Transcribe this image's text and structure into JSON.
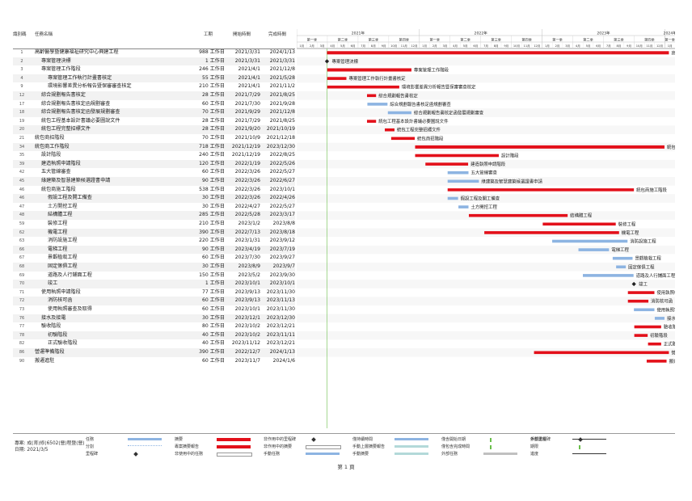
{
  "header": {
    "id": "識別碼",
    "name": "任務名稱",
    "duration": "工期",
    "start": "開始時間",
    "end": "完成時間"
  },
  "timeline": {
    "years": [
      "2021年",
      "2022年",
      "2023年",
      "2024年"
    ],
    "quarters": [
      "第一季",
      "第二季",
      "第三季",
      "第四季",
      "第一季",
      "第二季",
      "第三季",
      "第四季",
      "第一季",
      "第二季",
      "第三季",
      "第四季",
      "第一季",
      "第二季",
      "第三季",
      "第四季"
    ],
    "months": [
      "1月",
      "2月",
      "3月",
      "4月",
      "5月",
      "6月",
      "7月",
      "8月",
      "9月",
      "10月",
      "11月",
      "12月",
      "1月",
      "2月",
      "3月",
      "4月",
      "5月",
      "6月",
      "7月",
      "8月",
      "9月",
      "10月",
      "11月",
      "12月",
      "1月",
      "2月",
      "3月",
      "4月",
      "5月",
      "6月",
      "7月",
      "8月",
      "9月",
      "10月",
      "11月",
      "12月",
      "1月",
      "2月",
      "3月",
      "4月",
      "5月",
      "6月",
      "7月",
      "8月",
      "9月",
      "10月",
      "11月",
      "12月",
      "1月"
    ]
  },
  "tasks": [
    {
      "id": "1",
      "name": "高齡醫學暨健康福祉研究中心興建工程",
      "dur": "988 工作日",
      "start": "2021/3/31",
      "end": "2024/1/13",
      "indent": 0,
      "type": "summary",
      "label": "高齡醫學暨健康福祉研究中心興建工程",
      "s": 2021.247,
      "e": 2024.033
    },
    {
      "id": "2",
      "name": "專案管理決標",
      "dur": "1 工作日",
      "start": "2021/3/31",
      "end": "2021/3/31",
      "indent": 1,
      "type": "milestone",
      "label": "專案管理決標",
      "s": 2021.247,
      "e": 2021.247
    },
    {
      "id": "3",
      "name": "專案管理工作階段",
      "dur": "246 工作日",
      "start": "2021/4/1",
      "end": "2021/12/8",
      "indent": 1,
      "type": "summary",
      "label": "專案管理工作階段",
      "s": 2021.249,
      "e": 2021.935
    },
    {
      "id": "4",
      "name": "專案管理工作執行計畫書核定",
      "dur": "55 工作日",
      "start": "2021/4/1",
      "end": "2021/5/28",
      "indent": 2,
      "type": "critical",
      "label": "專案管理工作執行計畫書核定",
      "s": 2021.249,
      "e": 2021.405
    },
    {
      "id": "9",
      "name": "環境影響差異分析報告暨保審審查核定",
      "dur": "210 工作日",
      "start": "2021/4/1",
      "end": "2021/11/2",
      "indent": 2,
      "type": "critical",
      "label": "環境影響差異分析報告暨保審審查核定",
      "s": 2021.249,
      "e": 2021.836
    },
    {
      "id": "12",
      "name": "綜合規劃報告書核定",
      "dur": "28 工作日",
      "start": "2021/7/29",
      "end": "2021/8/25",
      "indent": 1,
      "type": "critical",
      "label": "綜合規劃報告書核定",
      "s": 2021.573,
      "e": 2021.647
    },
    {
      "id": "17",
      "name": "綜合規劃報告書核定函規劃審查",
      "dur": "60 工作日",
      "start": "2021/7/30",
      "end": "2021/9/28",
      "indent": 1,
      "type": "normal",
      "label": "綜合規劃報告書核定函規劃審查",
      "s": 2021.576,
      "e": 2021.74
    },
    {
      "id": "18",
      "name": "綜合規劃報告書核定函發展規劃審查",
      "dur": "70 工作日",
      "start": "2021/9/29",
      "end": "2021/12/8",
      "indent": 1,
      "type": "normal",
      "label": "綜合規劃報告書核定函發展規劃審查",
      "s": 2021.743,
      "e": 2021.935
    },
    {
      "id": "19",
      "name": "統包工程基本設計書議必要圖說文件",
      "dur": "28 工作日",
      "start": "2021/7/29",
      "end": "2021/8/25",
      "indent": 1,
      "type": "critical",
      "label": "統包工程基本設計書議必要圖說文件",
      "s": 2021.573,
      "e": 2021.647
    },
    {
      "id": "20",
      "name": "統包工程完整招標文件",
      "dur": "28 工作日",
      "start": "2021/9/20",
      "end": "2021/10/19",
      "indent": 1,
      "type": "critical",
      "label": "統包工程完整招標文件",
      "s": 2021.718,
      "e": 2021.797
    },
    {
      "id": "21",
      "name": "統包商招階段",
      "dur": "70 工作日",
      "start": "2021/10/9",
      "end": "2021/12/18",
      "indent": 0,
      "type": "critical",
      "label": "統包商招階段",
      "s": 2021.77,
      "e": 2021.962
    },
    {
      "id": "34",
      "name": "統包商工作階段",
      "dur": "718 工作日",
      "start": "2021/12/19",
      "end": "2023/12/30",
      "indent": 0,
      "type": "summary",
      "label": "統包商工作階段",
      "s": 2021.965,
      "e": 2023.997
    },
    {
      "id": "35",
      "name": "設計階段",
      "dur": "240 工作日",
      "start": "2021/12/19",
      "end": "2022/8/25",
      "indent": 1,
      "type": "critical",
      "label": "設計階段",
      "s": 2021.965,
      "e": 2022.647
    },
    {
      "id": "39",
      "name": "建造執照申請階段",
      "dur": "120 工作日",
      "start": "2022/1/19",
      "end": "2022/5/26",
      "indent": 1,
      "type": "critical",
      "label": "建造執照申請階段",
      "s": 2022.049,
      "e": 2022.397
    },
    {
      "id": "42",
      "name": "五大管線審查",
      "dur": "60 工作日",
      "start": "2022/3/26",
      "end": "2022/5/27",
      "indent": 1,
      "type": "normal",
      "label": "五大管線審查",
      "s": 2022.23,
      "e": 2022.4
    },
    {
      "id": "45",
      "name": "綠建築及智慧建築候選證書申請",
      "dur": "90 工作日",
      "start": "2022/3/26",
      "end": "2022/6/27",
      "indent": 1,
      "type": "normal",
      "label": "綠建築及智慧建築候選證書申請",
      "s": 2022.23,
      "e": 2022.485
    },
    {
      "id": "46",
      "name": "統包商施工階段",
      "dur": "538 工作日",
      "start": "2022/3/26",
      "end": "2023/10/1",
      "indent": 1,
      "type": "critical",
      "label": "統包商施工階段",
      "s": 2022.23,
      "e": 2023.748
    },
    {
      "id": "46",
      "name": "假設工程及開工備查",
      "dur": "30 工作日",
      "start": "2022/3/26",
      "end": "2022/4/26",
      "indent": 2,
      "type": "normal",
      "label": "假設工程及開工備查",
      "s": 2022.23,
      "e": 2022.315
    },
    {
      "id": "47",
      "name": "土方開挖工程",
      "dur": "30 工作日",
      "start": "2022/4/27",
      "end": "2022/5/27",
      "indent": 2,
      "type": "normal",
      "label": "土方開挖工程",
      "s": 2022.318,
      "e": 2022.4
    },
    {
      "id": "48",
      "name": "結構體工程",
      "dur": "285 工作日",
      "start": "2022/5/28",
      "end": "2023/3/17",
      "indent": 2,
      "type": "critical",
      "label": "結構體工程",
      "s": 2022.403,
      "e": 2023.208
    },
    {
      "id": "59",
      "name": "裝修工程",
      "dur": "210 工作日",
      "start": "2023/1/2",
      "end": "2023/8/8",
      "indent": 2,
      "type": "critical",
      "label": "裝修工程",
      "s": 2023.005,
      "e": 2023.6
    },
    {
      "id": "62",
      "name": "機電工程",
      "dur": "390 工作日",
      "start": "2022/7/13",
      "end": "2023/8/18",
      "indent": 2,
      "type": "critical",
      "label": "機電工程",
      "s": 2022.529,
      "e": 2023.627
    },
    {
      "id": "63",
      "name": "消防設施工程",
      "dur": "220 工作日",
      "start": "2023/1/31",
      "end": "2023/9/12",
      "indent": 2,
      "type": "normal",
      "label": "消防設施工程",
      "s": 2023.082,
      "e": 2023.696
    },
    {
      "id": "66",
      "name": "電梯工程",
      "dur": "90 工作日",
      "start": "2023/4/19",
      "end": "2023/7/19",
      "indent": 2,
      "type": "normal",
      "label": "電梯工程",
      "s": 2023.296,
      "e": 2023.545
    },
    {
      "id": "67",
      "name": "景觀植栽工程",
      "dur": "60 工作日",
      "start": "2023/7/30",
      "end": "2023/9/27",
      "indent": 2,
      "type": "normal",
      "label": "景觀植栽工程",
      "s": 2023.575,
      "e": 2023.737
    },
    {
      "id": "68",
      "name": "固定傢俱工程",
      "dur": "30 工作日",
      "start": "2023/8/9",
      "end": "2023/9/7",
      "indent": 2,
      "type": "normal",
      "label": "固定傢俱工程",
      "s": 2023.603,
      "e": 2023.682
    },
    {
      "id": "69",
      "name": "道路及人行鋪面工程",
      "dur": "150 工作日",
      "start": "2023/5/2",
      "end": "2023/9/30",
      "indent": 2,
      "type": "normal",
      "label": "道路及人行鋪面工程",
      "s": 2023.332,
      "e": 2023.745
    },
    {
      "id": "70",
      "name": "竣工",
      "dur": "1 工作日",
      "start": "2023/10/1",
      "end": "2023/10/1",
      "indent": 2,
      "type": "milestone",
      "label": "竣工",
      "s": 2023.748,
      "e": 2023.748
    },
    {
      "id": "71",
      "name": "使用執照申請階段",
      "dur": "77 工作日",
      "start": "2023/9/13",
      "end": "2023/11/30",
      "indent": 1,
      "type": "critical",
      "label": "使用執照申請階段",
      "s": 2023.699,
      "e": 2023.915
    },
    {
      "id": "72",
      "name": "消防核可函",
      "dur": "60 工作日",
      "start": "2023/9/13",
      "end": "2023/11/13",
      "indent": 2,
      "type": "critical",
      "label": "消防核可函",
      "s": 2023.699,
      "e": 2023.866
    },
    {
      "id": "73",
      "name": "使用執照審查及取得",
      "dur": "60 工作日",
      "start": "2023/10/1",
      "end": "2023/11/30",
      "indent": 2,
      "type": "normal",
      "label": "使用執照審查及取得",
      "s": 2023.748,
      "e": 2023.915
    },
    {
      "id": "76",
      "name": "接水及接電",
      "dur": "30 工作日",
      "start": "2023/12/1",
      "end": "2023/12/30",
      "indent": 1,
      "type": "normal",
      "label": "接水及接電",
      "s": 2023.918,
      "e": 2023.997
    },
    {
      "id": "77",
      "name": "驗收階段",
      "dur": "80 工作日",
      "start": "2023/10/2",
      "end": "2023/12/21",
      "indent": 1,
      "type": "critical",
      "label": "驗收階段",
      "s": 2023.751,
      "e": 2023.97
    },
    {
      "id": "78",
      "name": "初驗階段",
      "dur": "40 工作日",
      "start": "2023/10/2",
      "end": "2023/11/11",
      "indent": 2,
      "type": "critical",
      "label": "初驗階段",
      "s": 2023.751,
      "e": 2023.86
    },
    {
      "id": "82",
      "name": "正式驗收階段",
      "dur": "40 工作日",
      "start": "2023/11/12",
      "end": "2023/12/21",
      "indent": 2,
      "type": "critical",
      "label": "正式驗收階段",
      "s": 2023.863,
      "e": 2023.97
    },
    {
      "id": "86",
      "name": "營運準備階段",
      "dur": "390 工作日",
      "start": "2022/12/7",
      "end": "2024/1/13",
      "indent": 0,
      "type": "critical",
      "label": "營運準備階段",
      "s": 2022.934,
      "e": 2024.033
    },
    {
      "id": "90",
      "name": "搬遷進駐",
      "dur": "60 工作日",
      "start": "2023/11/7",
      "end": "2024/1/6",
      "indent": 0,
      "type": "critical",
      "label": "搬遷進駐",
      "s": 2023.852,
      "e": 2024.014
    }
  ],
  "footer": {
    "project_line1": "專案: 成(育)修(6502(營)程暨(營)",
    "project_line2": "日期: 2021/3/5",
    "legend": [
      {
        "label": "任務",
        "kind": "task"
      },
      {
        "label": "分割",
        "kind": "split"
      },
      {
        "label": "里程碑",
        "kind": "milestone"
      },
      {
        "label": "摘要",
        "kind": "summary"
      },
      {
        "label": "專案摘要報告",
        "kind": "project-summary"
      },
      {
        "label": "非使用中的任務",
        "kind": "inactive-task"
      },
      {
        "label": "非作用中的里程碑",
        "kind": "inactive-milestone"
      },
      {
        "label": "非作用中的摘要",
        "kind": "inactive-summary"
      },
      {
        "label": "手動任務",
        "kind": "manual-task"
      },
      {
        "label": "僅持續時間",
        "kind": "duration-only"
      },
      {
        "label": "手動上層摘要報告",
        "kind": "manual-summary-rollup"
      },
      {
        "label": "手動摘要",
        "kind": "manual-summary"
      },
      {
        "label": "僅含開始日期",
        "kind": "start-only"
      },
      {
        "label": "僅包含完成時間",
        "kind": "finish-only"
      },
      {
        "label": "外部任務",
        "kind": "external-task"
      },
      {
        "label": "外部里程碑",
        "kind": "external-milestone"
      },
      {
        "label": "期限",
        "kind": "deadline"
      },
      {
        "label": "進度",
        "kind": "progress"
      },
      {
        "label": "手動進度",
        "kind": "manual-progress"
      }
    ]
  },
  "page_number": "第 1 頁",
  "colors": {
    "critical": "#e3101a",
    "normal": "#8db4e2",
    "summary": "#e3101a",
    "grid": "#d9d9d9",
    "header_line": "#8a8a8a",
    "today_line": "#6abf4b"
  }
}
